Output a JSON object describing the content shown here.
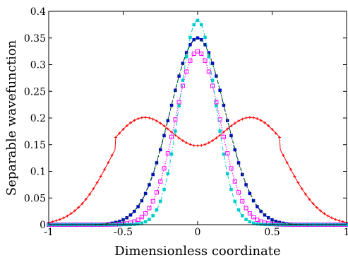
{
  "chart_data": {
    "type": "line",
    "xlabel": "Dimensionless coordinate",
    "ylabel": "Separable wavefunction",
    "xlim": [
      -1,
      1
    ],
    "ylim": [
      0,
      0.4
    ],
    "xticks": [
      {
        "value": -1,
        "label": "-1"
      },
      {
        "value": -0.5,
        "label": "-0.5"
      },
      {
        "value": 0,
        "label": "0"
      },
      {
        "value": 0.5,
        "label": "0.5"
      },
      {
        "value": 1,
        "label": "1"
      }
    ],
    "yticks": [
      {
        "value": 0,
        "label": "0"
      },
      {
        "value": 0.05,
        "label": "0.05"
      },
      {
        "value": 0.1,
        "label": "0.1"
      },
      {
        "value": 0.15,
        "label": "0.15"
      },
      {
        "value": 0.2,
        "label": "0.2"
      },
      {
        "value": 0.25,
        "label": "0.25"
      },
      {
        "value": 0.3,
        "label": "0.3"
      },
      {
        "value": 0.35,
        "label": "0.35"
      },
      {
        "value": 0.4,
        "label": "0.4"
      }
    ],
    "grid": false,
    "series": [
      {
        "color": "#ff0000",
        "line_style": "solid",
        "marker": "plus",
        "shape": "double-peak",
        "params": {
          "a": 0.35,
          "b": 0.0,
          "value_at_zero": 0.148,
          "peak_value": 0.201,
          "peak_x": 0.36,
          "width": 0.23
        }
      },
      {
        "color": "#0000cc",
        "line_style": "dashdot",
        "marker": "filled-square",
        "shape": "gaussian",
        "params": {
          "peak_value": 0.35,
          "width": 0.185
        }
      },
      {
        "color": "#ff00ff",
        "line_style": "dotted",
        "marker": "open-square",
        "shape": "gaussian",
        "params": {
          "peak_value": 0.325,
          "width": 0.15
        }
      },
      {
        "color": "#00cccc",
        "line_style": "dashdot",
        "marker": "filled-square",
        "shape": "gaussian",
        "params": {
          "peak_value": 0.383,
          "width": 0.12
        }
      },
      {
        "color": "#006600",
        "line_style": "dashed",
        "marker": "none",
        "shape": "gaussian",
        "params": {
          "peak_value": 0.348,
          "width": 0.187
        }
      }
    ]
  }
}
